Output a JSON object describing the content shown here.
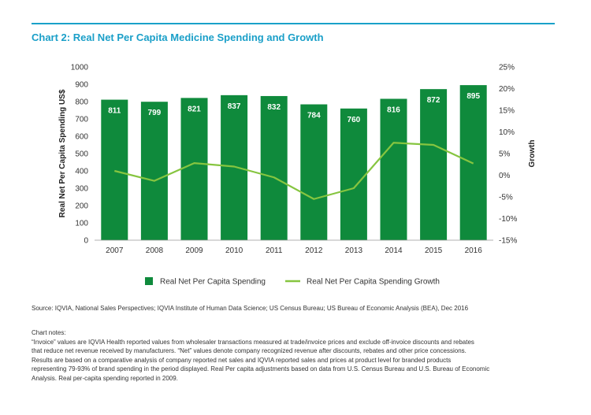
{
  "chart_title": "Chart 2: Real Net Per Capita Medicine Spending and Growth",
  "colors": {
    "bar": "#0f8a3c",
    "line": "#86c540",
    "title": "#1a9fc8"
  },
  "chart_data": {
    "type": "bar",
    "categories": [
      "2007",
      "2008",
      "2009",
      "2010",
      "2011",
      "2012",
      "2013",
      "2014",
      "2015",
      "2016"
    ],
    "series": [
      {
        "name": "Real Net Per Capita Spending",
        "type": "bar",
        "axis": "left",
        "values": [
          811,
          799,
          821,
          837,
          832,
          784,
          760,
          816,
          872,
          895
        ]
      },
      {
        "name": "Real Net Per Capita Spending Growth",
        "type": "line",
        "axis": "right",
        "values": [
          1.0,
          -1.3,
          2.8,
          2.0,
          -0.5,
          -5.5,
          -3.0,
          7.5,
          7.0,
          2.7
        ]
      }
    ],
    "ylabel": "Real Net Per Capita Spending US$",
    "y2label": "Growth",
    "ylim": [
      0,
      1000
    ],
    "y2lim": [
      -15,
      25
    ],
    "yticks": [
      "0",
      "100",
      "200",
      "300",
      "400",
      "500",
      "600",
      "700",
      "800",
      "900",
      "1000"
    ],
    "y2ticks": [
      "-15%",
      "-10%",
      "-5%",
      "0%",
      "5%",
      "10%",
      "15%",
      "20%",
      "25%"
    ],
    "data_labels": [
      "811",
      "799",
      "821",
      "837",
      "832",
      "784",
      "760",
      "816",
      "872",
      "895"
    ],
    "legend_position": "bottom",
    "grid": false
  },
  "source": "Source: IQVIA, National Sales Perspectives; IQVIA Institute of Human Data Science; US Census Bureau; US Bureau of Economic Analysis (BEA), Dec 2016",
  "notes": {
    "heading": "Chart notes:",
    "lines": [
      "“Invoice” values are IQVIA Health reported values from wholesaler transactions measured at trade/invoice prices and exclude off-invoice discounts and rebates",
      "that reduce net revenue received by manufacturers. “Net” values denote company recognized revenue after discounts, rebates and other price concessions.",
      "Results are based on a comparative analysis of company reported net sales and IQVIA reported sales and prices at product level for branded products",
      "representing 79-93% of brand spending in the period displayed. Real Per capita adjustments based on data from U.S. Census Bureau and U.S. Bureau of Economic",
      "Analysis.  Real per-capita spending reported in 2009."
    ]
  }
}
